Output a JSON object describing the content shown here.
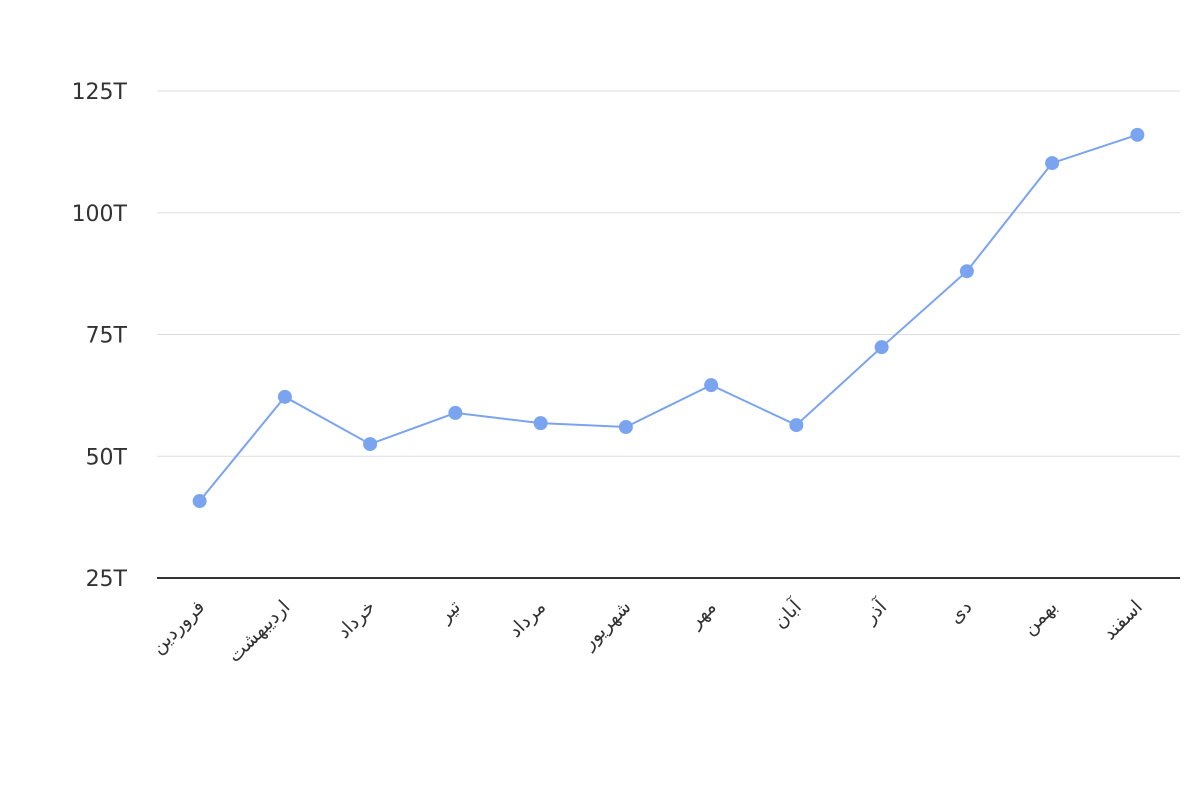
{
  "chart_data": {
    "type": "line",
    "categories": [
      "فروردین",
      "اردیبهشت",
      "خرداد",
      "تیر",
      "مرداد",
      "شهریور",
      "مهر",
      "آبان",
      "آذر",
      "دی",
      "بهمن",
      "اسفند"
    ],
    "series": [
      {
        "color": "#7ba4f0",
        "values": [
          40.8,
          62.2,
          52.5,
          58.9,
          56.8,
          56.0,
          64.6,
          56.4,
          72.4,
          88.0,
          110.2,
          116.0
        ]
      }
    ],
    "ylim": [
      25,
      125
    ],
    "yticks": [
      {
        "value": 25,
        "label": "25T"
      },
      {
        "value": 50,
        "label": "50T"
      },
      {
        "value": 75,
        "label": "75T"
      },
      {
        "value": 100,
        "label": "100T"
      },
      {
        "value": 125,
        "label": "125T"
      }
    ],
    "grid": true
  }
}
